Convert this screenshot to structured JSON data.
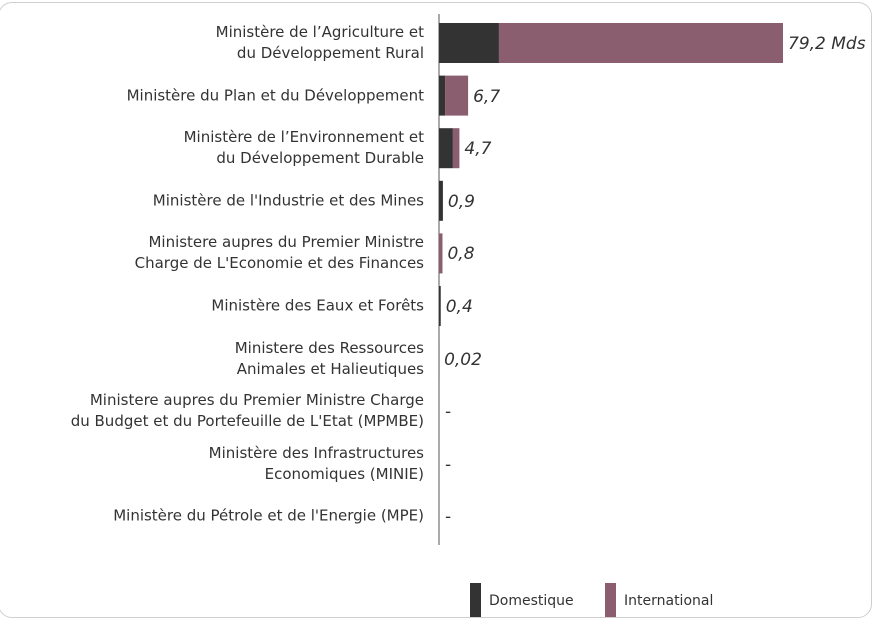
{
  "chart_data": {
    "type": "stacked-bar-horizontal",
    "categories": [
      "Ministère de l’Agriculture et\ndu Développement Rural",
      "Ministère du Plan et du Développement",
      "Ministère de l’Environnement et\ndu Développement Durable",
      "Ministère de l'Industrie et des Mines",
      "Ministere aupres du Premier Ministre\nCharge de L'Economie et des Finances",
      "Ministère des Eaux et Forêts",
      "Ministere des Ressources\nAnimales et Halieutiques",
      "Ministere aupres du Premier Ministre Charge\ndu Budget et du Portefeuille de L'Etat (MPMBE)",
      "Ministère des Infrastructures\nEconomiques (MINIE)",
      "Ministère du Pétrole et de l'Energie (MPE)"
    ],
    "series": [
      {
        "name": "Domestique",
        "color": "#333333",
        "values": [
          13.8,
          1.4,
          3.2,
          0.9,
          0,
          0.4,
          0.02,
          null,
          null,
          null
        ]
      },
      {
        "name": "International",
        "color": "#8b5e6f",
        "values": [
          65.4,
          5.3,
          1.5,
          0,
          0.8,
          0,
          0,
          null,
          null,
          null
        ]
      }
    ],
    "totals": [
      79.2,
      6.7,
      4.7,
      0.9,
      0.8,
      0.4,
      0.02,
      null,
      null,
      null
    ],
    "total_labels": [
      "79,2 Mds",
      "6,7",
      "4,7",
      "0,9",
      "0,8",
      "0,4",
      "0,02",
      "-",
      "-",
      "-"
    ]
  }
}
